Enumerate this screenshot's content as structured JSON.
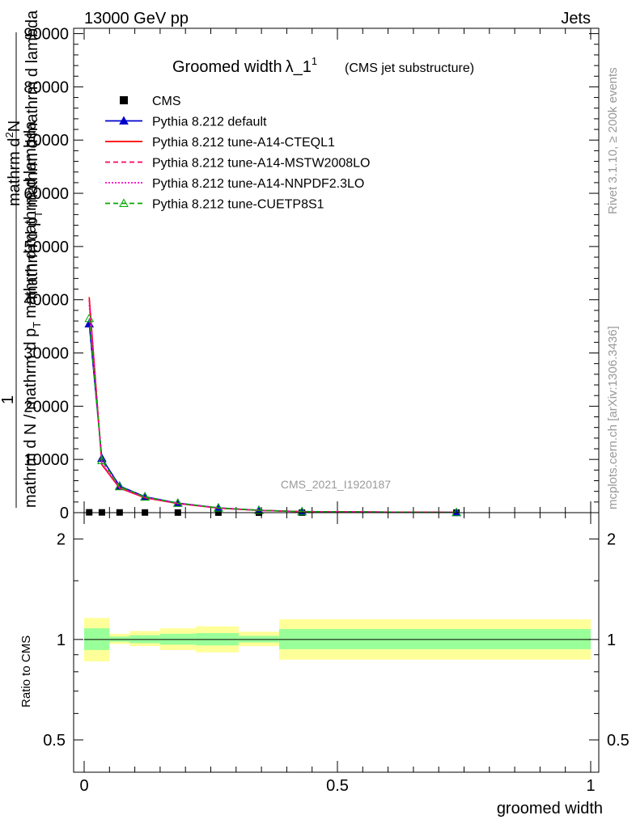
{
  "header": {
    "left": "13000 GeV pp",
    "right": "Jets"
  },
  "side": {
    "rivet": "Rivet 3.1.10, ≥ 200k events",
    "mcplots": "mcplots.cern.ch [arXiv:1306.3436]"
  },
  "chart_data": [
    {
      "type": "line",
      "title": "Groomed width",
      "title_math": "λ_1",
      "title_sup": "1",
      "subtitle": "(CMS jet substructure)",
      "watermark": "CMS_2021_I1920187",
      "ylabel_top": "mathrm d",
      "ylabel_top_sup": "2",
      "ylabel_top_n": "N",
      "ylabel_top_rest": "mathrm d",
      "ylabel_bot_one": "1",
      "ylabel_bot": "mathrm d N / mathrm d p",
      "ylabel_bot_sub": "T",
      "ylabel_bot_rest": "mathrm d",
      "ylabel_bot_rest2": "mathrm d lambda",
      "ylabel_mid": "mathrm d p",
      "ylabel_mid_sub": "T",
      "ylabel_mid_rest": "mathrm d",
      "ylabel_mathrm_d_lambda": "mathrm d lambda",
      "xlim": [
        -0.02,
        1.0
      ],
      "ylim": [
        0,
        91000
      ],
      "yticks": [
        "0",
        "10000",
        "20000",
        "30000",
        "40000",
        "50000",
        "60000",
        "70000",
        "80000",
        "90000"
      ],
      "ytick_values": [
        0,
        10000,
        20000,
        30000,
        40000,
        50000,
        60000,
        70000,
        80000,
        90000
      ],
      "legend_position": "top-left",
      "series": [
        {
          "name": "CMS",
          "color": "#000000",
          "style": "marker-square",
          "x": [
            0.01,
            0.035,
            0.07,
            0.12,
            0.185,
            0.265,
            0.345,
            0.43,
            0.735
          ],
          "y": [
            60,
            50,
            40,
            30,
            20,
            12,
            8,
            5,
            2
          ]
        },
        {
          "name": "Pythia 8.212 default",
          "color": "#0000cc",
          "style": "solid-triangle",
          "x": [
            0.01,
            0.035,
            0.07,
            0.12,
            0.185,
            0.265,
            0.345,
            0.43,
            0.735
          ],
          "y": [
            35500,
            10200,
            5000,
            3000,
            1800,
            900,
            450,
            200,
            40
          ]
        },
        {
          "name": "Pythia 8.212 tune-A14-CTEQL1",
          "color": "#ff0000",
          "style": "solid",
          "x": [
            0.01,
            0.035,
            0.07,
            0.12,
            0.185,
            0.265,
            0.345,
            0.43,
            0.735
          ],
          "y": [
            40500,
            9000,
            4600,
            2800,
            1700,
            850,
            420,
            190,
            40
          ]
        },
        {
          "name": "Pythia 8.212 tune-A14-MSTW2008LO",
          "color": "#ff0066",
          "style": "dashed",
          "x": [
            0.01,
            0.035,
            0.07,
            0.12,
            0.185,
            0.265,
            0.345,
            0.43,
            0.735
          ],
          "y": [
            40000,
            9100,
            4650,
            2850,
            1720,
            860,
            425,
            190,
            40
          ]
        },
        {
          "name": "Pythia 8.212 tune-A14-NNPDF2.3LO",
          "color": "#ff00cc",
          "style": "dotted",
          "x": [
            0.01,
            0.035,
            0.07,
            0.12,
            0.185,
            0.265,
            0.345,
            0.43,
            0.735
          ],
          "y": [
            39000,
            9300,
            4700,
            2880,
            1740,
            870,
            430,
            195,
            40
          ]
        },
        {
          "name": "Pythia 8.212 tune-CUETP8S1",
          "color": "#00aa00",
          "style": "dashed-triangle-open",
          "x": [
            0.01,
            0.035,
            0.07,
            0.12,
            0.185,
            0.265,
            0.345,
            0.43,
            0.735
          ],
          "y": [
            36500,
            9800,
            4900,
            2950,
            1780,
            890,
            440,
            198,
            40
          ]
        }
      ]
    },
    {
      "type": "area",
      "ylabel": "Ratio to CMS",
      "xlabel": "groomed width",
      "xlim": [
        -0.02,
        1.0
      ],
      "ylim": [
        0.4,
        2.4
      ],
      "log_y": true,
      "yticks": [
        "0.5",
        "1",
        "2"
      ],
      "ytick_values": [
        0.5,
        1,
        2
      ],
      "xticks": [
        "0",
        "0.5",
        "1"
      ],
      "xtick_values": [
        0,
        0.5,
        1
      ],
      "bins": [
        {
          "x0": 0.0,
          "x1": 0.05,
          "green": [
            0.93,
            1.08
          ],
          "yellow": [
            0.86,
            1.16
          ]
        },
        {
          "x0": 0.05,
          "x1": 0.09,
          "green": [
            0.985,
            1.02
          ],
          "yellow": [
            0.97,
            1.04
          ]
        },
        {
          "x0": 0.09,
          "x1": 0.15,
          "green": [
            0.975,
            1.03
          ],
          "yellow": [
            0.955,
            1.06
          ]
        },
        {
          "x0": 0.15,
          "x1": 0.22,
          "green": [
            0.965,
            1.04
          ],
          "yellow": [
            0.93,
            1.08
          ]
        },
        {
          "x0": 0.22,
          "x1": 0.305,
          "green": [
            0.96,
            1.045
          ],
          "yellow": [
            0.915,
            1.095
          ]
        },
        {
          "x0": 0.305,
          "x1": 0.385,
          "green": [
            0.98,
            1.025
          ],
          "yellow": [
            0.955,
            1.055
          ]
        },
        {
          "x0": 0.385,
          "x1": 1.0,
          "green": [
            0.935,
            1.075
          ],
          "yellow": [
            0.87,
            1.15
          ]
        }
      ]
    }
  ]
}
